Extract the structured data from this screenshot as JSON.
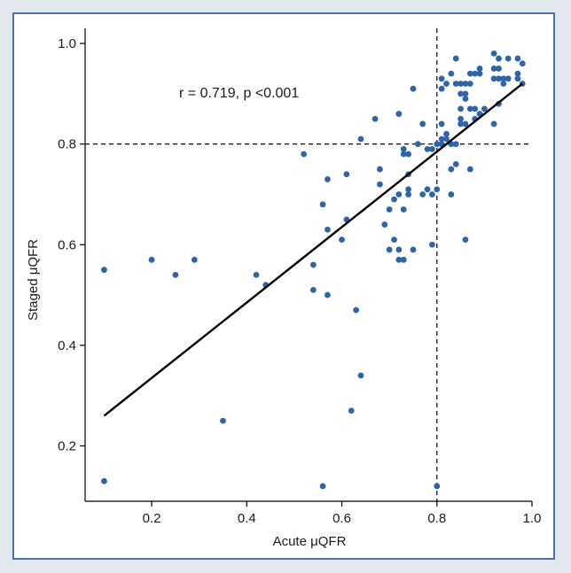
{
  "chart_data": {
    "type": "scatter",
    "title": "",
    "xlabel": "Acute μQFR",
    "ylabel": "Staged μQFR",
    "xlim": [
      0.06,
      1.0
    ],
    "ylim": [
      0.09,
      1.03
    ],
    "xticks": [
      0.2,
      0.4,
      0.6,
      0.8,
      1.0
    ],
    "xtick_labels": [
      "0.2",
      "0.4",
      "0.6",
      "0.8",
      "1.0"
    ],
    "yticks": [
      0.2,
      0.4,
      0.6,
      0.8,
      1.0
    ],
    "ytick_labels": [
      "0.2",
      "0.4",
      "0.6",
      "0.8",
      "1.0"
    ],
    "annotation": "r = 0.719, p <0.001",
    "regression_line": {
      "x": [
        0.1,
        0.98
      ],
      "y": [
        0.26,
        0.92
      ]
    },
    "reference_lines": {
      "x": 0.8,
      "y": 0.8
    },
    "point_color": "#2e64a8",
    "line_color": "#000000",
    "points": [
      [
        0.1,
        0.55
      ],
      [
        0.1,
        0.13
      ],
      [
        0.2,
        0.57
      ],
      [
        0.25,
        0.54
      ],
      [
        0.29,
        0.57
      ],
      [
        0.35,
        0.25
      ],
      [
        0.42,
        0.54
      ],
      [
        0.44,
        0.52
      ],
      [
        0.52,
        0.78
      ],
      [
        0.54,
        0.56
      ],
      [
        0.54,
        0.51
      ],
      [
        0.56,
        0.68
      ],
      [
        0.56,
        0.12
      ],
      [
        0.57,
        0.73
      ],
      [
        0.57,
        0.63
      ],
      [
        0.57,
        0.5
      ],
      [
        0.6,
        0.61
      ],
      [
        0.61,
        0.74
      ],
      [
        0.61,
        0.65
      ],
      [
        0.62,
        0.27
      ],
      [
        0.63,
        0.47
      ],
      [
        0.64,
        0.81
      ],
      [
        0.64,
        0.34
      ],
      [
        0.67,
        0.85
      ],
      [
        0.68,
        0.75
      ],
      [
        0.68,
        0.72
      ],
      [
        0.69,
        0.64
      ],
      [
        0.7,
        0.67
      ],
      [
        0.7,
        0.59
      ],
      [
        0.71,
        0.69
      ],
      [
        0.71,
        0.61
      ],
      [
        0.72,
        0.86
      ],
      [
        0.72,
        0.7
      ],
      [
        0.72,
        0.59
      ],
      [
        0.72,
        0.57
      ],
      [
        0.73,
        0.79
      ],
      [
        0.73,
        0.78
      ],
      [
        0.73,
        0.67
      ],
      [
        0.73,
        0.57
      ],
      [
        0.74,
        0.78
      ],
      [
        0.74,
        0.74
      ],
      [
        0.74,
        0.71
      ],
      [
        0.74,
        0.7
      ],
      [
        0.75,
        0.91
      ],
      [
        0.75,
        0.59
      ],
      [
        0.76,
        0.8
      ],
      [
        0.77,
        0.84
      ],
      [
        0.77,
        0.7
      ],
      [
        0.78,
        0.79
      ],
      [
        0.78,
        0.71
      ],
      [
        0.79,
        0.79
      ],
      [
        0.79,
        0.7
      ],
      [
        0.79,
        0.6
      ],
      [
        0.8,
        0.71
      ],
      [
        0.8,
        0.12
      ],
      [
        0.81,
        0.93
      ],
      [
        0.81,
        0.91
      ],
      [
        0.81,
        0.84
      ],
      [
        0.81,
        0.81
      ],
      [
        0.81,
        0.8
      ],
      [
        0.82,
        0.92
      ],
      [
        0.82,
        0.82
      ],
      [
        0.82,
        0.81
      ],
      [
        0.83,
        0.94
      ],
      [
        0.83,
        0.8
      ],
      [
        0.83,
        0.75
      ],
      [
        0.83,
        0.7
      ],
      [
        0.84,
        0.97
      ],
      [
        0.84,
        0.92
      ],
      [
        0.84,
        0.76
      ],
      [
        0.84,
        0.8
      ],
      [
        0.85,
        0.92
      ],
      [
        0.85,
        0.9
      ],
      [
        0.85,
        0.87
      ],
      [
        0.85,
        0.85
      ],
      [
        0.85,
        0.84
      ],
      [
        0.86,
        0.89
      ],
      [
        0.86,
        0.92
      ],
      [
        0.86,
        0.84
      ],
      [
        0.86,
        0.61
      ],
      [
        0.86,
        0.9
      ],
      [
        0.87,
        0.92
      ],
      [
        0.87,
        0.94
      ],
      [
        0.87,
        0.87
      ],
      [
        0.87,
        0.75
      ],
      [
        0.88,
        0.94
      ],
      [
        0.88,
        0.87
      ],
      [
        0.88,
        0.85
      ],
      [
        0.89,
        0.95
      ],
      [
        0.89,
        0.94
      ],
      [
        0.89,
        0.86
      ],
      [
        0.9,
        0.87
      ],
      [
        0.92,
        0.98
      ],
      [
        0.92,
        0.95
      ],
      [
        0.92,
        0.93
      ],
      [
        0.92,
        0.84
      ],
      [
        0.93,
        0.97
      ],
      [
        0.93,
        0.95
      ],
      [
        0.93,
        0.93
      ],
      [
        0.93,
        0.88
      ],
      [
        0.94,
        0.92
      ],
      [
        0.94,
        0.93
      ],
      [
        0.95,
        0.97
      ],
      [
        0.95,
        0.93
      ],
      [
        0.97,
        0.97
      ],
      [
        0.97,
        0.94
      ],
      [
        0.97,
        0.93
      ],
      [
        0.98,
        0.96
      ],
      [
        0.98,
        0.92
      ],
      [
        0.8,
        0.8
      ]
    ]
  }
}
